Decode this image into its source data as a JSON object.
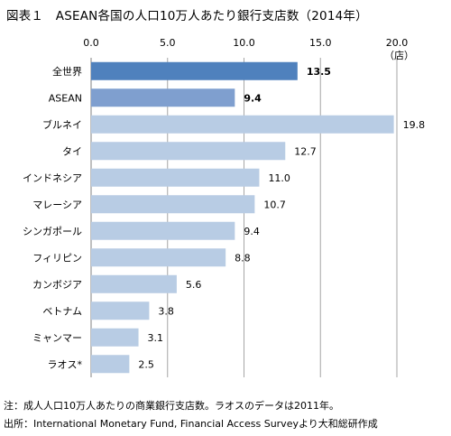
{
  "title": "図表１　ASEAN各国の人口10万人あたり銀行支店数（2014年）",
  "note": "注：成人人口10万人あたりの商業銀行支店数。ラオスのデータは2011年。",
  "source": "出所：International Monetary Fund, Financial Access Surveyより大和総研作成",
  "chart_data": {
    "type": "bar",
    "orientation": "horizontal",
    "unit_label": "（店）",
    "xlim": [
      0,
      20
    ],
    "ticks": [
      "0.0",
      "5.0",
      "10.0",
      "15.0",
      "20.0"
    ],
    "tick_values": [
      0,
      5,
      10,
      15,
      20
    ],
    "grid": true,
    "categories": [
      "全世界",
      "ASEAN",
      "ブルネイ",
      "タイ",
      "インドネシア",
      "マレーシア",
      "シンガポール",
      "フィリピン",
      "カンボジア",
      "ベトナム",
      "ミャンマー",
      "ラオス*"
    ],
    "values": [
      13.5,
      9.4,
      19.8,
      12.7,
      11.0,
      10.7,
      9.4,
      8.8,
      5.6,
      3.8,
      3.1,
      2.5
    ],
    "labels": [
      "13.5",
      "9.4",
      "19.8",
      "12.7",
      "11.0",
      "10.7",
      "9.4",
      "8.8",
      "5.6",
      "3.8",
      "3.1",
      "2.5"
    ],
    "bold_labels": [
      true,
      true,
      false,
      false,
      false,
      false,
      false,
      false,
      false,
      false,
      false,
      false
    ],
    "colors": [
      "#4f81bd",
      "#7f9fcf",
      "#b8cce4",
      "#b8cce4",
      "#b8cce4",
      "#b8cce4",
      "#b8cce4",
      "#b8cce4",
      "#b8cce4",
      "#b8cce4",
      "#b8cce4",
      "#b8cce4"
    ]
  }
}
